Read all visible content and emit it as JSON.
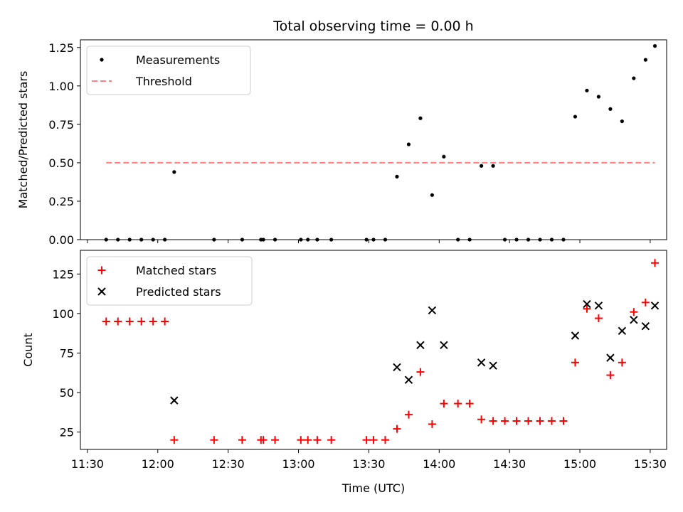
{
  "title": "Total observing time = 0.00 h",
  "colors": {
    "measurement": "#000000",
    "threshold": "#ff8080",
    "matched": "#ff0000",
    "predicted": "#000000"
  },
  "chart_data": [
    {
      "type": "scatter",
      "ylabel": "Matched/Predicted stars",
      "xlim": [
        "11:27",
        "15:37"
      ],
      "ylim": [
        0,
        1.3
      ],
      "yticks": [
        "0.00",
        "0.25",
        "0.50",
        "0.75",
        "1.00",
        "1.25"
      ],
      "legend_position": "top-left",
      "legend": [
        "Measurements",
        "Threshold"
      ],
      "series": [
        {
          "name": "Measurements",
          "x": [
            "11:38",
            "11:43",
            "11:48",
            "11:53",
            "11:58",
            "12:03",
            "12:07",
            "12:24",
            "12:36",
            "12:44",
            "12:45",
            "12:50",
            "13:01",
            "13:04",
            "13:08",
            "13:14",
            "13:29",
            "13:32",
            "13:37",
            "13:42",
            "13:47",
            "13:52",
            "13:57",
            "14:02",
            "14:08",
            "14:13",
            "14:18",
            "14:23",
            "14:28",
            "14:33",
            "14:38",
            "14:43",
            "14:48",
            "14:53",
            "14:58",
            "15:03",
            "15:08",
            "15:13",
            "15:18",
            "15:23",
            "15:28",
            "15:32"
          ],
          "y": [
            0,
            0,
            0,
            0,
            0,
            0,
            0.44,
            0,
            0,
            0,
            0,
            0,
            0,
            0,
            0,
            0,
            0,
            0,
            0,
            0.41,
            0.62,
            0.79,
            0.29,
            0.54,
            0,
            0,
            0.48,
            0.48,
            0,
            0,
            0,
            0,
            0,
            0,
            0.8,
            0.97,
            0.93,
            0.85,
            0.77,
            1.05,
            1.17,
            1.26
          ]
        },
        {
          "name": "Threshold",
          "x": [
            "11:38",
            "15:32"
          ],
          "y": [
            0.5,
            0.5
          ]
        }
      ]
    },
    {
      "type": "scatter",
      "ylabel": "Count",
      "xlabel": "Time (UTC)",
      "xlim": [
        "11:27",
        "15:37"
      ],
      "ylim": [
        14,
        140
      ],
      "yticks": [
        "25",
        "50",
        "75",
        "100",
        "125"
      ],
      "xticks": [
        "11:30",
        "12:00",
        "12:30",
        "13:00",
        "13:30",
        "14:00",
        "14:30",
        "15:00",
        "15:30"
      ],
      "legend_position": "top-left",
      "legend": [
        "Matched stars",
        "Predicted stars"
      ],
      "series": [
        {
          "name": "Matched stars",
          "x": [
            "11:38",
            "11:43",
            "11:48",
            "11:53",
            "11:58",
            "12:03",
            "12:07",
            "12:24",
            "12:36",
            "12:44",
            "12:45",
            "12:50",
            "13:01",
            "13:04",
            "13:08",
            "13:14",
            "13:29",
            "13:32",
            "13:37",
            "13:42",
            "13:47",
            "13:52",
            "13:57",
            "14:02",
            "14:08",
            "14:13",
            "14:18",
            "14:23",
            "14:28",
            "14:33",
            "14:38",
            "14:43",
            "14:48",
            "14:53",
            "14:58",
            "15:03",
            "15:08",
            "15:13",
            "15:18",
            "15:23",
            "15:28",
            "15:32"
          ],
          "y": [
            95,
            95,
            95,
            95,
            95,
            95,
            20,
            20,
            20,
            20,
            20,
            20,
            20,
            20,
            20,
            20,
            20,
            20,
            20,
            27,
            36,
            63,
            30,
            43,
            43,
            43,
            33,
            32,
            32,
            32,
            32,
            32,
            32,
            32,
            69,
            103,
            97,
            61,
            69,
            101,
            107,
            132
          ]
        },
        {
          "name": "Predicted stars",
          "x": [
            "12:07",
            "13:42",
            "13:47",
            "13:52",
            "13:57",
            "14:02",
            "14:18",
            "14:23",
            "14:58",
            "15:03",
            "15:08",
            "15:13",
            "15:18",
            "15:23",
            "15:28",
            "15:32"
          ],
          "y": [
            45,
            66,
            58,
            80,
            102,
            80,
            69,
            67,
            86,
            106,
            105,
            72,
            89,
            96,
            92,
            105
          ]
        }
      ]
    }
  ]
}
